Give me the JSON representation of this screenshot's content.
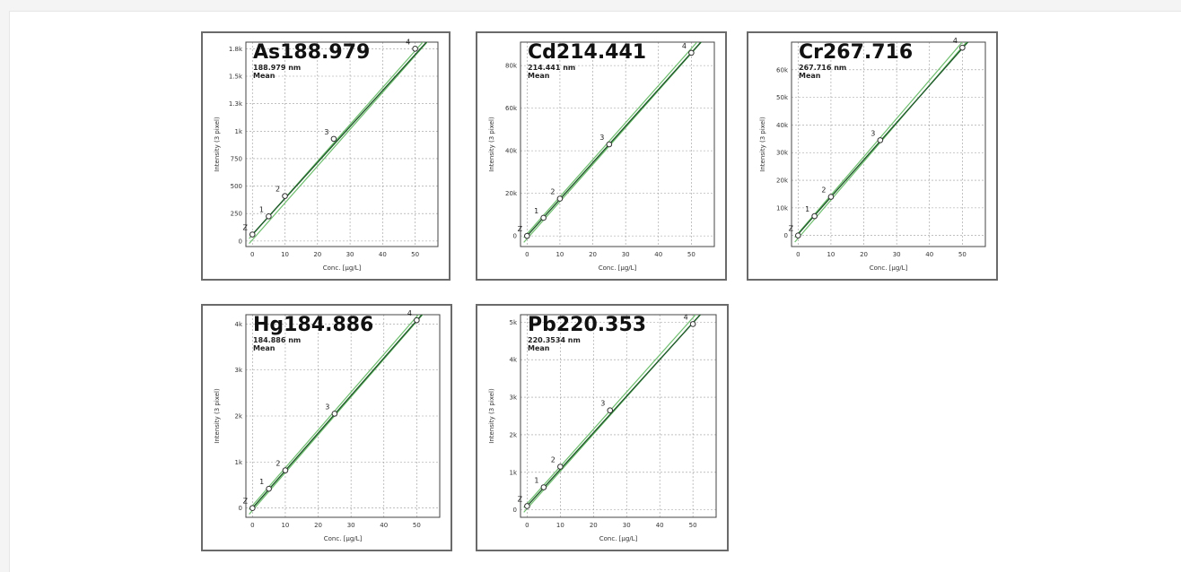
{
  "chart_data": [
    {
      "type": "scatter",
      "title": "As188.979",
      "subtitle": "188.979 nm",
      "subtitle2": "Mean",
      "xlabel": "Conc. [µg/L]",
      "ylabel": "Intensity (3 pixel)",
      "xlim": [
        -2,
        57
      ],
      "ylim": [
        -50,
        1810
      ],
      "xticks": [
        0,
        10,
        20,
        30,
        40,
        50
      ],
      "xtick_labels": [
        "0",
        "10",
        "20",
        "30",
        "40",
        "50"
      ],
      "yticks": [
        0,
        250,
        500,
        750,
        1000,
        1250,
        1500,
        1750
      ],
      "ytick_labels": [
        "0",
        "250",
        "500",
        "750",
        "1k",
        "1.3k",
        "1.5k",
        "1.8k"
      ],
      "grid": true,
      "points": [
        {
          "x": 0,
          "y": 60,
          "label": "Z"
        },
        {
          "x": 5,
          "y": 225,
          "label": "1"
        },
        {
          "x": 10,
          "y": 410,
          "label": "2"
        },
        {
          "x": 25,
          "y": 930,
          "label": "3"
        },
        {
          "x": 50,
          "y": 1750,
          "label": "4"
        }
      ],
      "fit": [
        [
          0,
          60
        ],
        [
          55,
          1860
        ]
      ],
      "band": [
        [
          -1,
          0
        ],
        [
          56,
          1910
        ]
      ]
    },
    {
      "type": "scatter",
      "title": "Cd214.441",
      "subtitle": "214.441 nm",
      "subtitle2": "Mean",
      "xlabel": "Conc. [µg/L]",
      "ylabel": "Intensity (3 pixel)",
      "xlim": [
        -2,
        57
      ],
      "ylim": [
        -5000,
        91000
      ],
      "xticks": [
        0,
        10,
        20,
        30,
        40,
        50
      ],
      "xtick_labels": [
        "0",
        "10",
        "20",
        "30",
        "40",
        "50"
      ],
      "yticks": [
        0,
        20000,
        40000,
        60000,
        80000
      ],
      "ytick_labels": [
        "0",
        "20k",
        "40k",
        "60k",
        "80k"
      ],
      "grid": true,
      "points": [
        {
          "x": 0,
          "y": 0,
          "label": "Z"
        },
        {
          "x": 5,
          "y": 8500,
          "label": "1"
        },
        {
          "x": 10,
          "y": 17500,
          "label": "2"
        },
        {
          "x": 25,
          "y": 43000,
          "label": "3"
        },
        {
          "x": 50,
          "y": 86000,
          "label": "4"
        }
      ],
      "fit": [
        [
          0,
          0
        ],
        [
          55,
          94600
        ]
      ],
      "band": [
        [
          -1,
          -1900
        ],
        [
          56,
          97300
        ]
      ]
    },
    {
      "type": "scatter",
      "title": "Cr267.716",
      "subtitle": "267.716 nm",
      "subtitle2": "Mean",
      "xlabel": "Conc. [µg/L]",
      "ylabel": "Intensity (3 pixel)",
      "xlim": [
        -2,
        57
      ],
      "ylim": [
        -4000,
        70000
      ],
      "xticks": [
        0,
        10,
        20,
        30,
        40,
        50
      ],
      "xtick_labels": [
        "0",
        "10",
        "20",
        "30",
        "40",
        "50"
      ],
      "yticks": [
        0,
        10000,
        20000,
        30000,
        40000,
        50000,
        60000
      ],
      "ytick_labels": [
        "0",
        "10k",
        "20k",
        "30k",
        "40k",
        "50k",
        "60k"
      ],
      "grid": true,
      "points": [
        {
          "x": 0,
          "y": 0,
          "label": "Z"
        },
        {
          "x": 5,
          "y": 7000,
          "label": "1"
        },
        {
          "x": 10,
          "y": 14000,
          "label": "2"
        },
        {
          "x": 25,
          "y": 34500,
          "label": "3"
        },
        {
          "x": 50,
          "y": 68000,
          "label": "4"
        }
      ],
      "fit": [
        [
          0,
          500
        ],
        [
          55,
          74500
        ]
      ],
      "band": [
        [
          -1,
          -1500
        ],
        [
          56,
          77500
        ]
      ]
    },
    {
      "type": "scatter",
      "title": "Hg184.886",
      "subtitle": "184.886 nm",
      "subtitle2": "Mean",
      "xlabel": "Conc. [µg/L]",
      "ylabel": "Intensity (3 pixel)",
      "xlim": [
        -2,
        57
      ],
      "ylim": [
        -200,
        4200
      ],
      "xticks": [
        0,
        10,
        20,
        30,
        40,
        50
      ],
      "xtick_labels": [
        "0",
        "10",
        "20",
        "30",
        "40",
        "50"
      ],
      "yticks": [
        0,
        1000,
        2000,
        3000,
        4000
      ],
      "ytick_labels": [
        "0",
        "1k",
        "2k",
        "3k",
        "4k"
      ],
      "grid": true,
      "points": [
        {
          "x": 0,
          "y": 0,
          "label": "Z"
        },
        {
          "x": 5,
          "y": 420,
          "label": "1"
        },
        {
          "x": 10,
          "y": 820,
          "label": "2"
        },
        {
          "x": 25,
          "y": 2050,
          "label": "3"
        },
        {
          "x": 50,
          "y": 4080,
          "label": "4"
        }
      ],
      "fit": [
        [
          0,
          0
        ],
        [
          55,
          4480
        ]
      ],
      "band": [
        [
          -1,
          -80
        ],
        [
          56,
          4600
        ]
      ]
    },
    {
      "type": "scatter",
      "title": "Pb220.353",
      "subtitle": "220.3534 nm",
      "subtitle2": "Mean",
      "xlabel": "Conc. [µg/L]",
      "ylabel": "Intensity (3 pixel)",
      "xlim": [
        -2,
        57
      ],
      "ylim": [
        -200,
        5200
      ],
      "xticks": [
        0,
        10,
        20,
        30,
        40,
        50
      ],
      "xtick_labels": [
        "0",
        "10",
        "20",
        "30",
        "40",
        "50"
      ],
      "yticks": [
        0,
        1000,
        2000,
        3000,
        4000,
        5000
      ],
      "ytick_labels": [
        "0",
        "1k",
        "2k",
        "3k",
        "4k",
        "5k"
      ],
      "grid": true,
      "points": [
        {
          "x": 0,
          "y": 100,
          "label": "Z"
        },
        {
          "x": 5,
          "y": 600,
          "label": "1"
        },
        {
          "x": 10,
          "y": 1150,
          "label": "2"
        },
        {
          "x": 25,
          "y": 2650,
          "label": "3"
        },
        {
          "x": 50,
          "y": 4950,
          "label": "4"
        }
      ],
      "fit": [
        [
          0,
          100
        ],
        [
          55,
          5470
        ]
      ],
      "band": [
        [
          -1,
          0
        ],
        [
          56,
          5650
        ]
      ]
    }
  ],
  "colors": {
    "fit_line": "#1f5a2a",
    "band_line": "#6fbf6f",
    "grid": "#9a9a9a",
    "point": "#333333"
  }
}
